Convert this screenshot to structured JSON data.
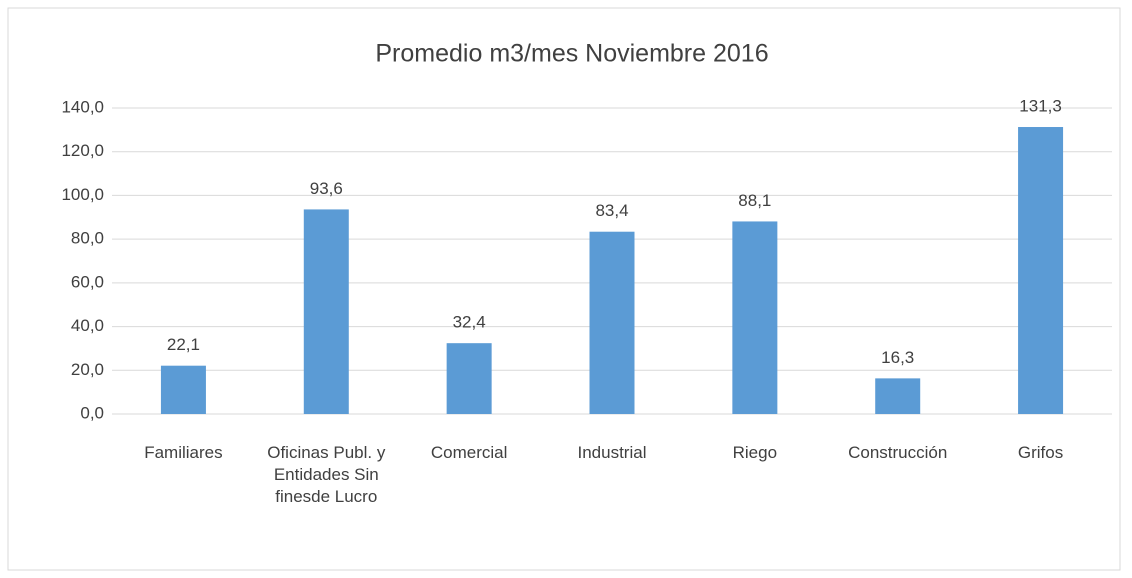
{
  "chart_data": {
    "type": "bar",
    "title": "Promedio m3/mes Noviembre 2016",
    "categories": [
      "Familiares",
      "Oficinas Publ. y Entidades Sin finesde Lucro",
      "Comercial",
      "Industrial",
      "Riego",
      "Construcción",
      "Grifos"
    ],
    "values": [
      22.1,
      93.6,
      32.4,
      83.4,
      88.1,
      16.3,
      131.3
    ],
    "value_labels": [
      "22,1",
      "93,6",
      "32,4",
      "83,4",
      "88,1",
      "16,3",
      "131,3"
    ],
    "color": "#5b9bd5",
    "ylim": [
      0,
      140
    ],
    "yticks": [
      {
        "value": 0,
        "label": "0,0"
      },
      {
        "value": 20,
        "label": "20,0"
      },
      {
        "value": 40,
        "label": "40,0"
      },
      {
        "value": 60,
        "label": "60,0"
      },
      {
        "value": 80,
        "label": "80,0"
      },
      {
        "value": 100,
        "label": "100,0"
      },
      {
        "value": 120,
        "label": "120,0"
      },
      {
        "value": 140,
        "label": "140,0"
      }
    ],
    "grid": true
  }
}
